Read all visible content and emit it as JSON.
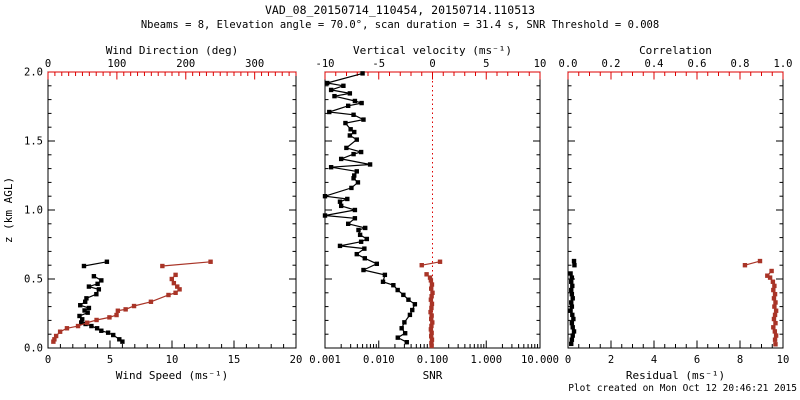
{
  "header": {
    "title": "VAD_08_20150714_110454, 20150714.110513",
    "subtitle": "Nbeams = 8, Elevation angle = 70.0°, scan duration = 31.4 s, SNR Threshold = 0.008"
  },
  "footer": {
    "created": "Plot created on Mon Oct 12 20:46:21 2015"
  },
  "colors": {
    "axis_red": "#dd0000",
    "data_red": "#a93427",
    "black": "#000000",
    "background": "#ffffff"
  },
  "chart_data": [
    {
      "id": "wind",
      "type": "scatter",
      "box": {
        "x0": 48,
        "x1": 296,
        "y0": 72,
        "y1": 348
      },
      "ylabel": "z (km AGL)",
      "ylim": [
        0,
        2
      ],
      "y_ticks": {
        "values": [
          0,
          0.5,
          1,
          1.5,
          2
        ],
        "labels": [
          "0.0",
          "0.5",
          "1.0",
          "1.5",
          "2.0"
        ],
        "minor_step": 0.1,
        "show_labels": true
      },
      "bottom_axis": {
        "label": "Wind Speed (ms⁻¹)",
        "scale": "linear",
        "lim": [
          0,
          20
        ],
        "ticks": [
          0,
          5,
          10,
          15,
          20
        ],
        "tick_labels": [
          "0",
          "5",
          "10",
          "15",
          "20"
        ],
        "minor_step": 1,
        "color": "black"
      },
      "top_axis": {
        "label": "Wind Direction (deg)",
        "scale": "linear",
        "lim": [
          0,
          360
        ],
        "ticks": [
          0,
          100,
          200,
          300
        ],
        "tick_labels": [
          "0",
          "100",
          "200",
          "300"
        ],
        "minor_step": 10,
        "color": "red"
      },
      "series": [
        {
          "name": "wind-speed",
          "axis": "bottom",
          "color": "black",
          "segments": [
            [
              [
                6.0,
                0.046
              ],
              [
                5.75,
                0.063
              ],
              [
                5.26,
                0.094
              ],
              [
                4.85,
                0.111
              ],
              [
                4.3,
                0.125
              ],
              [
                3.96,
                0.143
              ],
              [
                3.5,
                0.159
              ],
              [
                3.03,
                0.174
              ],
              [
                2.68,
                0.185
              ],
              [
                2.76,
                0.208
              ],
              [
                2.54,
                0.232
              ],
              [
                3.2,
                0.256
              ],
              [
                2.95,
                0.272
              ],
              [
                3.3,
                0.29
              ],
              [
                2.6,
                0.31
              ],
              [
                3.0,
                0.335
              ],
              [
                3.1,
                0.36
              ],
              [
                3.9,
                0.39
              ],
              [
                4.1,
                0.425
              ],
              [
                3.3,
                0.445
              ],
              [
                4.0,
                0.465
              ],
              [
                4.3,
                0.49
              ],
              [
                3.7,
                0.52
              ]
            ],
            [
              [
                2.9,
                0.594
              ],
              [
                4.75,
                0.625
              ]
            ]
          ]
        },
        {
          "name": "wind-direction",
          "axis": "top",
          "color": "red",
          "segments": [
            [
              [
                7.8,
                0.046
              ],
              [
                9.3,
                0.063
              ],
              [
                11.8,
                0.087
              ],
              [
                17.6,
                0.118
              ],
              [
                27.5,
                0.143
              ],
              [
                43.6,
                0.159
              ],
              [
                56.9,
                0.183
              ],
              [
                70.5,
                0.203
              ],
              [
                89.2,
                0.222
              ],
              [
                99.5,
                0.239
              ],
              [
                101.4,
                0.27
              ],
              [
                112.7,
                0.28
              ],
              [
                124.9,
                0.304
              ],
              [
                149.4,
                0.335
              ],
              [
                174.9,
                0.384
              ],
              [
                185.2,
                0.4
              ],
              [
                191.0,
                0.425
              ],
              [
                187.6,
                0.445
              ],
              [
                182.7,
                0.47
              ],
              [
                179.7,
                0.5
              ],
              [
                185.2,
                0.53
              ]
            ],
            [
              [
                166,
                0.594
              ],
              [
                236,
                0.625
              ]
            ]
          ]
        }
      ]
    },
    {
      "id": "snr",
      "type": "scatter",
      "box": {
        "x0": 325,
        "x1": 540,
        "y0": 72,
        "y1": 348
      },
      "ylabel": "",
      "ylim": [
        0,
        2
      ],
      "y_ticks": {
        "values": [
          0,
          0.5,
          1,
          1.5,
          2
        ],
        "labels": [
          "0.0",
          "0.5",
          "1.0",
          "1.5",
          "2.0"
        ],
        "minor_step": 0.1,
        "show_labels": false
      },
      "bottom_axis": {
        "label": "SNR",
        "scale": "log",
        "lim": [
          0.001,
          10
        ],
        "ticks": [
          0.001,
          0.01,
          0.1,
          1,
          10
        ],
        "tick_labels": [
          "0.001",
          "0.010",
          "0.100",
          "1.000",
          "10.000"
        ],
        "color": "black"
      },
      "top_axis": {
        "label": "Vertical velocity (ms⁻¹)",
        "scale": "linear",
        "lim": [
          -10,
          10
        ],
        "ticks": [
          -10,
          -5,
          0,
          5,
          10
        ],
        "tick_labels": [
          "-10",
          "-5",
          "0",
          "5",
          "10"
        ],
        "minor_step": 1,
        "color": "red"
      },
      "refline": {
        "axis": "top",
        "value": 0
      },
      "series": [
        {
          "name": "snr",
          "axis": "bottom",
          "color": "black",
          "segments": [
            [
              [
                0.0332,
                0.042
              ],
              [
                0.0226,
                0.075
              ],
              [
                0.031,
                0.107
              ],
              [
                0.0267,
                0.143
              ],
              [
                0.03,
                0.186
              ],
              [
                0.038,
                0.24
              ],
              [
                0.042,
                0.275
              ],
              [
                0.047,
                0.317
              ],
              [
                0.0357,
                0.35
              ],
              [
                0.0287,
                0.385
              ],
              [
                0.0225,
                0.42
              ],
              [
                0.0187,
                0.455
              ],
              [
                0.012,
                0.48
              ],
              [
                0.013,
                0.53
              ],
              [
                0.0052,
                0.565
              ],
              [
                0.0092,
                0.61
              ],
              [
                0.0055,
                0.65
              ],
              [
                0.0039,
                0.68
              ],
              [
                0.0054,
                0.72
              ],
              [
                0.0019,
                0.74
              ],
              [
                0.0047,
                0.77
              ],
              [
                0.006,
                0.79
              ],
              [
                0.0045,
                0.82
              ],
              [
                0.0042,
                0.855
              ],
              [
                0.0056,
                0.87
              ],
              [
                0.0027,
                0.9
              ],
              [
                0.0036,
                0.94
              ],
              [
                0.001,
                0.96
              ],
              [
                0.0036,
                1.0
              ],
              [
                0.002,
                1.03
              ],
              [
                0.0019,
                1.06
              ],
              [
                0.0026,
                1.08
              ],
              [
                0.001,
                1.1
              ],
              [
                0.0031,
                1.16
              ],
              [
                0.0041,
                1.2
              ],
              [
                0.0034,
                1.23
              ],
              [
                0.0035,
                1.25
              ],
              [
                0.0039,
                1.28
              ],
              [
                0.0013,
                1.31
              ],
              [
                0.0069,
                1.33
              ],
              [
                0.002,
                1.37
              ],
              [
                0.0034,
                1.405
              ],
              [
                0.0047,
                1.42
              ],
              [
                0.0025,
                1.45
              ],
              [
                0.0039,
                1.51
              ],
              [
                0.0029,
                1.54
              ],
              [
                0.0035,
                1.565
              ],
              [
                0.003,
                1.585
              ],
              [
                0.0024,
                1.63
              ],
              [
                0.0052,
                1.655
              ],
              [
                0.0034,
                1.69
              ],
              [
                0.0012,
                1.71
              ],
              [
                0.0027,
                1.755
              ],
              [
                0.0048,
                1.775
              ],
              [
                0.0036,
                1.79
              ],
              [
                0.0015,
                1.825
              ],
              [
                0.0029,
                1.845
              ],
              [
                0.0013,
                1.87
              ],
              [
                0.0022,
                1.9
              ],
              [
                0.0011,
                1.92
              ],
              [
                0.005,
                1.99
              ]
            ]
          ]
        },
        {
          "name": "vertical-velocity",
          "axis": "top",
          "color": "red",
          "segments": [
            [
              [
                -1.0,
                0.6
              ],
              [
                0.7,
                0.625
              ]
            ],
            [
              [
                -0.55,
                0.534
              ],
              [
                -0.23,
                0.51
              ]
            ],
            [
              [
                -0.15,
                0.49
              ],
              [
                -0.05,
                0.46
              ],
              [
                -0.12,
                0.43
              ],
              [
                0.0,
                0.4
              ],
              [
                -0.08,
                0.375
              ],
              [
                -0.15,
                0.35
              ],
              [
                -0.05,
                0.32
              ],
              [
                -0.1,
                0.29
              ],
              [
                -0.18,
                0.26
              ],
              [
                -0.08,
                0.235
              ],
              [
                -0.12,
                0.21
              ],
              [
                -0.02,
                0.185
              ],
              [
                -0.1,
                0.16
              ],
              [
                -0.15,
                0.135
              ],
              [
                -0.08,
                0.11
              ],
              [
                -0.12,
                0.085
              ],
              [
                -0.05,
                0.06
              ],
              [
                -0.1,
                0.035
              ],
              [
                -0.08,
                0.015
              ]
            ]
          ]
        }
      ]
    },
    {
      "id": "residual",
      "type": "scatter",
      "box": {
        "x0": 568,
        "x1": 783,
        "y0": 72,
        "y1": 348
      },
      "ylabel": "",
      "ylim": [
        0,
        2
      ],
      "y_ticks": {
        "values": [
          0,
          0.5,
          1,
          1.5,
          2
        ],
        "labels": [
          "0.0",
          "0.5",
          "1.0",
          "1.5",
          "2.0"
        ],
        "minor_step": 0.1,
        "show_labels": false
      },
      "bottom_axis": {
        "label": "Residual (ms⁻¹)",
        "scale": "linear",
        "lim": [
          0,
          10
        ],
        "ticks": [
          0,
          2,
          4,
          6,
          8,
          10
        ],
        "tick_labels": [
          "0",
          "2",
          "4",
          "6",
          "8",
          "10"
        ],
        "minor_step": 0.5,
        "color": "black"
      },
      "top_axis": {
        "label": "Correlation",
        "scale": "linear",
        "lim": [
          0,
          1
        ],
        "ticks": [
          0,
          0.2,
          0.4,
          0.6,
          0.8,
          1.0
        ],
        "tick_labels": [
          "0.0",
          "0.2",
          "0.4",
          "0.6",
          "0.8",
          "1.0"
        ],
        "minor_step": 0.05,
        "color": "red"
      },
      "series": [
        {
          "name": "residual",
          "axis": "bottom",
          "color": "black",
          "segments": [
            [
              [
                0.15,
                0.03
              ],
              [
                0.18,
                0.06
              ],
              [
                0.22,
                0.09
              ],
              [
                0.28,
                0.12
              ],
              [
                0.22,
                0.15
              ],
              [
                0.18,
                0.18
              ],
              [
                0.25,
                0.21
              ],
              [
                0.2,
                0.24
              ],
              [
                0.12,
                0.27
              ],
              [
                0.18,
                0.3
              ],
              [
                0.15,
                0.33
              ],
              [
                0.22,
                0.36
              ],
              [
                0.18,
                0.39
              ],
              [
                0.15,
                0.42
              ],
              [
                0.2,
                0.45
              ],
              [
                0.15,
                0.48
              ],
              [
                0.18,
                0.51
              ],
              [
                0.12,
                0.54
              ]
            ],
            [
              [
                0.3,
                0.6
              ],
              [
                0.28,
                0.63
              ]
            ]
          ]
        },
        {
          "name": "correlation",
          "axis": "top",
          "color": "red",
          "segments": [
            [
              [
                0.965,
                0.027
              ],
              [
                0.963,
                0.06
              ],
              [
                0.968,
                0.09
              ],
              [
                0.962,
                0.12
              ],
              [
                0.955,
                0.15
              ],
              [
                0.965,
                0.18
              ],
              [
                0.958,
                0.21
              ],
              [
                0.963,
                0.24
              ],
              [
                0.968,
                0.27
              ],
              [
                0.96,
                0.3
              ],
              [
                0.965,
                0.33
              ],
              [
                0.958,
                0.36
              ],
              [
                0.963,
                0.39
              ],
              [
                0.955,
                0.42
              ],
              [
                0.96,
                0.45
              ],
              [
                0.953,
                0.48
              ],
              [
                0.94,
                0.51
              ],
              [
                0.927,
                0.524
              ],
              [
                0.947,
                0.558
              ]
            ],
            [
              [
                0.823,
                0.6
              ],
              [
                0.893,
                0.63
              ]
            ]
          ]
        }
      ]
    }
  ]
}
